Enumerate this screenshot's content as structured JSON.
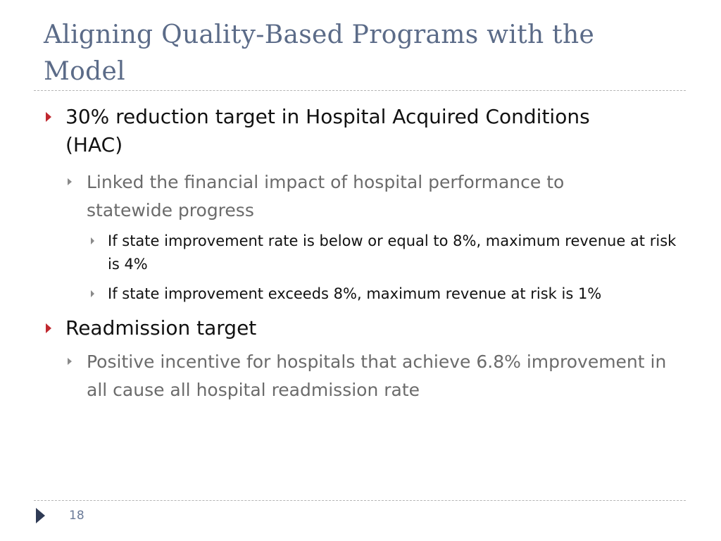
{
  "slide": {
    "title": "Aligning Quality-Based Programs with the Model",
    "bullets": [
      {
        "level": 1,
        "text": "30% reduction target in Hospital Acquired Conditions (HAC)"
      },
      {
        "level": 2,
        "text": "Linked the financial impact of hospital performance to statewide progress"
      },
      {
        "level": 3,
        "text": "If state improvement rate is below or equal to 8%, maximum revenue at risk is 4%"
      },
      {
        "level": 3,
        "text": "If state improvement exceeds 8%, maximum revenue at risk is 1%"
      },
      {
        "level": 1,
        "text": "Readmission target"
      },
      {
        "level": 2,
        "text": "Positive incentive for hospitals that achieve 6.8% improvement in all cause all hospital readmission rate"
      }
    ],
    "page_number": "18",
    "colors": {
      "title": "#5b6b88",
      "bullet_level1_marker": "#c0282f",
      "level2_text": "#6b6b6b"
    },
    "icons": {
      "level1_marker": "triangle-right-icon",
      "footer": "play-arrow-icon"
    }
  }
}
